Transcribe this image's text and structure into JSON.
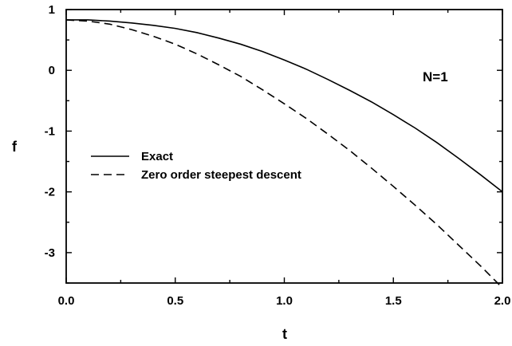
{
  "chart_data": {
    "type": "line",
    "title": "",
    "xlabel": "t",
    "ylabel": "f",
    "xlim": [
      0.0,
      2.0
    ],
    "ylim": [
      -3.5,
      1.0
    ],
    "x_ticks": [
      "0.0",
      "0.5",
      "1.0",
      "1.5",
      "2.0"
    ],
    "y_ticks": [
      "1",
      "0",
      "-1",
      "-2",
      "-3"
    ],
    "grid": false,
    "legend_position": "center-left",
    "annotation": "N=1",
    "series": [
      {
        "name": "Exact",
        "style": "solid",
        "color": "#000000",
        "x": [
          0.0,
          0.1,
          0.2,
          0.3,
          0.4,
          0.5,
          0.6,
          0.7,
          0.8,
          0.9,
          1.0,
          1.1,
          1.2,
          1.3,
          1.4,
          1.5,
          1.6,
          1.7,
          1.8,
          1.9,
          2.0
        ],
        "y": [
          0.83,
          0.83,
          0.81,
          0.78,
          0.74,
          0.69,
          0.62,
          0.53,
          0.43,
          0.31,
          0.17,
          0.02,
          -0.15,
          -0.33,
          -0.52,
          -0.73,
          -0.95,
          -1.19,
          -1.45,
          -1.72,
          -2.0
        ]
      },
      {
        "name": "Zero order steepest descent",
        "style": "dashed",
        "color": "#000000",
        "x": [
          0.0,
          0.1,
          0.2,
          0.3,
          0.4,
          0.5,
          0.6,
          0.7,
          0.8,
          0.9,
          1.0,
          1.1,
          1.2,
          1.3,
          1.4,
          1.5,
          1.6,
          1.7,
          1.8,
          1.9,
          2.0
        ],
        "y": [
          0.83,
          0.81,
          0.76,
          0.67,
          0.56,
          0.43,
          0.27,
          0.09,
          -0.1,
          -0.32,
          -0.55,
          -0.79,
          -1.05,
          -1.32,
          -1.61,
          -1.91,
          -2.22,
          -2.54,
          -2.88,
          -3.22,
          -3.58
        ]
      }
    ]
  }
}
